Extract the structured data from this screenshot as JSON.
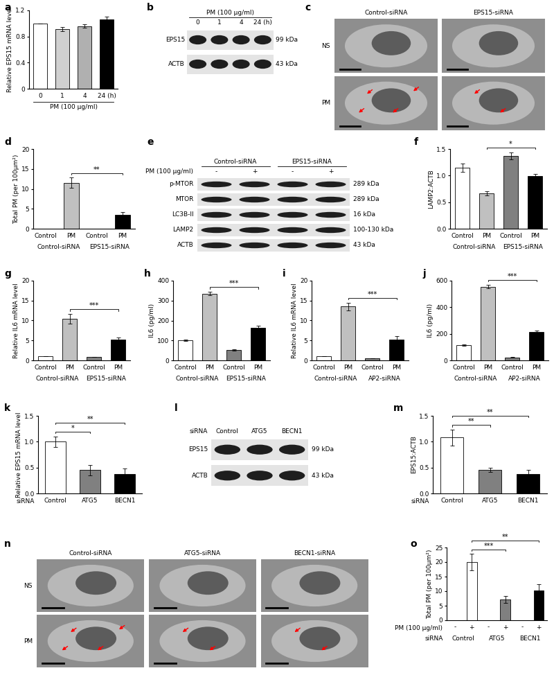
{
  "chart_data": [
    {
      "panel": "a",
      "type": "bar",
      "ylabel": "Relative EPS15 mRNA level",
      "categories": [
        "0",
        "1",
        "4",
        "24 (h)"
      ],
      "xlabel": "PM (100 µg/ml)",
      "values": [
        1.0,
        0.91,
        0.96,
        1.06
      ],
      "errors": [
        0.0,
        0.03,
        0.03,
        0.04
      ],
      "colors": [
        "#ffffff",
        "#d0d0d0",
        "#b0b0b0",
        "#000000"
      ],
      "ylim": [
        0,
        1.2
      ],
      "yticks": [
        0,
        0.4,
        0.8,
        1.2
      ]
    },
    {
      "panel": "d",
      "type": "bar",
      "ylabel": "Total PM (per 100µm²)",
      "categories": [
        "Control",
        "PM",
        "Control",
        "PM"
      ],
      "groups": [
        "Control-siRNA",
        "Control-siRNA",
        "EPS15-siRNA",
        "EPS15-siRNA"
      ],
      "values": [
        0,
        11.5,
        0,
        3.4
      ],
      "errors": [
        0,
        1.3,
        0,
        0.7
      ],
      "colors": [
        "#ffffff",
        "#c0c0c0",
        "#808080",
        "#000000"
      ],
      "comparisons": [
        {
          "between": [
            1,
            3
          ],
          "label": "**"
        }
      ],
      "ylim": [
        0,
        20
      ],
      "yticks": [
        0,
        5,
        10,
        15,
        20
      ]
    },
    {
      "panel": "f",
      "type": "bar",
      "ylabel": "LAMP2:ACTB",
      "categories": [
        "Control",
        "PM",
        "Control",
        "PM"
      ],
      "groups": [
        "Control-siRNA",
        "Control-siRNA",
        "EPS15-siRNA",
        "EPS15-siRNA"
      ],
      "values": [
        1.15,
        0.66,
        1.37,
        0.99
      ],
      "errors": [
        0.08,
        0.04,
        0.07,
        0.04
      ],
      "colors": [
        "#ffffff",
        "#c0c0c0",
        "#808080",
        "#000000"
      ],
      "comparisons": [
        {
          "between": [
            1,
            3
          ],
          "label": "*"
        }
      ],
      "ylim": [
        0,
        1.5
      ],
      "yticks": [
        {
          "value": 0,
          "label": "0.0"
        },
        0.5,
        1.0,
        1.5
      ]
    },
    {
      "panel": "g",
      "type": "bar",
      "ylabel": "Relative IL6 mRNA level",
      "categories": [
        "Control",
        "PM",
        "Control",
        "PM"
      ],
      "groups": [
        "Control-siRNA",
        "Control-siRNA",
        "EPS15-siRNA",
        "EPS15-siRNA"
      ],
      "values": [
        1.0,
        10.4,
        0.9,
        5.2
      ],
      "errors": [
        0.0,
        1.2,
        0.0,
        0.5
      ],
      "colors": [
        "#ffffff",
        "#c0c0c0",
        "#808080",
        "#000000"
      ],
      "comparisons": [
        {
          "between": [
            1,
            3
          ],
          "label": "***"
        }
      ],
      "ylim": [
        0,
        20
      ],
      "yticks": [
        0,
        5,
        10,
        15,
        20
      ]
    },
    {
      "panel": "h",
      "type": "bar",
      "ylabel": "IL6 (pg/ml)",
      "categories": [
        "Control",
        "PM",
        "Control",
        "PM"
      ],
      "groups": [
        "Control-siRNA",
        "Control-siRNA",
        "EPS15-siRNA",
        "EPS15-siRNA"
      ],
      "values": [
        100,
        335,
        52,
        165
      ],
      "errors": [
        4,
        8,
        4,
        10
      ],
      "colors": [
        "#ffffff",
        "#c0c0c0",
        "#808080",
        "#000000"
      ],
      "comparisons": [
        {
          "between": [
            1,
            3
          ],
          "label": "***"
        }
      ],
      "ylim": [
        0,
        400
      ],
      "yticks": [
        0,
        100,
        200,
        300,
        400
      ]
    },
    {
      "panel": "i",
      "type": "bar",
      "ylabel": "Relative IL6 mRNA level",
      "categories": [
        "Control",
        "PM",
        "Control",
        "PM"
      ],
      "groups": [
        "Control-siRNA",
        "Control-siRNA",
        "AP2-siRNA",
        "AP2-siRNA"
      ],
      "values": [
        1.0,
        13.5,
        0.5,
        5.3
      ],
      "errors": [
        0.0,
        1.0,
        0.0,
        0.8
      ],
      "colors": [
        "#ffffff",
        "#c0c0c0",
        "#808080",
        "#000000"
      ],
      "comparisons": [
        {
          "between": [
            1,
            3
          ],
          "label": "***"
        }
      ],
      "ylim": [
        0,
        20
      ],
      "yticks": [
        0,
        5,
        10,
        15,
        20
      ]
    },
    {
      "panel": "j",
      "type": "bar",
      "ylabel": "IL6 (pg/ml)",
      "categories": [
        "Control",
        "PM",
        "Control",
        "PM"
      ],
      "groups": [
        "Control-siRNA",
        "Control-siRNA",
        "AP2-siRNA",
        "AP2-siRNA"
      ],
      "values": [
        115,
        555,
        22,
        215
      ],
      "errors": [
        5,
        15,
        3,
        10
      ],
      "colors": [
        "#ffffff",
        "#c0c0c0",
        "#808080",
        "#000000"
      ],
      "comparisons": [
        {
          "between": [
            1,
            3
          ],
          "label": "***"
        }
      ],
      "ylim": [
        0,
        600
      ],
      "yticks": [
        0,
        200,
        400,
        600
      ]
    },
    {
      "panel": "k",
      "type": "bar",
      "ylabel": "Relative EPS15 mRNA level",
      "categories": [
        "Control",
        "ATG5",
        "BECN1"
      ],
      "row_labels": [
        "siRNA"
      ],
      "values": [
        1.0,
        0.45,
        0.38
      ],
      "errors": [
        0.1,
        0.1,
        0.1
      ],
      "colors": [
        "#ffffff",
        "#808080",
        "#000000"
      ],
      "comparisons": [
        {
          "between": [
            0,
            1
          ],
          "label": "*"
        },
        {
          "between": [
            0,
            2
          ],
          "label": "**"
        }
      ],
      "ylim": [
        0,
        1.5
      ],
      "yticks": [
        {
          "value": 0,
          "label": "0.0"
        },
        0.5,
        1.0,
        1.5
      ]
    },
    {
      "panel": "m",
      "type": "bar",
      "ylabel": "EPS15:ACTB",
      "categories": [
        "Control",
        "ATG5",
        "BECN1"
      ],
      "row_labels": [
        "siRNA"
      ],
      "values": [
        1.08,
        0.45,
        0.38
      ],
      "errors": [
        0.15,
        0.04,
        0.08
      ],
      "colors": [
        "#ffffff",
        "#808080",
        "#000000"
      ],
      "comparisons": [
        {
          "between": [
            0,
            1
          ],
          "label": "**"
        },
        {
          "between": [
            0,
            2
          ],
          "label": "**"
        }
      ],
      "ylim": [
        0,
        1.5
      ],
      "yticks": [
        {
          "value": 0,
          "label": "0.0"
        },
        0.5,
        1.0,
        1.5
      ]
    },
    {
      "panel": "o",
      "type": "bar",
      "ylabel": "Total PM (per 100µm²)",
      "categories": [
        "-",
        "+",
        "-",
        "+",
        "-",
        "+"
      ],
      "groups": [
        "Control",
        "Control",
        "ATG5",
        "ATG5",
        "BECN1",
        "BECN1"
      ],
      "row_labels": [
        "PM (100 µg/ml)",
        "siRNA"
      ],
      "values": [
        0,
        20,
        0,
        7.2,
        0,
        10.3
      ],
      "errors": [
        0,
        2.8,
        0,
        1.2,
        0,
        2.0
      ],
      "colors": [
        "#ffffff",
        "#ffffff",
        "#ffffff",
        "#808080",
        "#ffffff",
        "#000000"
      ],
      "comparisons": [
        {
          "between": [
            1,
            3
          ],
          "label": "***"
        },
        {
          "between": [
            1,
            5
          ],
          "label": "**"
        }
      ],
      "ylim": [
        0,
        25
      ],
      "yticks": [
        0,
        5,
        10,
        15,
        20,
        25
      ]
    }
  ],
  "blots": [
    {
      "panel": "b",
      "header": "PM (100 µg/ml)",
      "lane_labels": [
        "0",
        "1",
        "4",
        "24 (h)"
      ],
      "bands": [
        {
          "name": "EPS15",
          "size": "99 kDa"
        },
        {
          "name": "ACTB",
          "size": "43 kDa"
        }
      ]
    },
    {
      "panel": "e",
      "groups": [
        "Control-siRNA",
        "Control-siRNA",
        "EPS15-siRNA",
        "EPS15-siRNA"
      ],
      "row_label": "PM (100 µg/ml)",
      "lane_labels": [
        "-",
        "+",
        "-",
        "+"
      ],
      "bands": [
        {
          "name": "p-MTOR",
          "size": "289 kDa"
        },
        {
          "name": "MTOR",
          "size": "289 kDa"
        },
        {
          "name": "LC3B-II",
          "size": "16 kDa"
        },
        {
          "name": "LAMP2",
          "size": "100-130 kDa"
        },
        {
          "name": "ACTB",
          "size": "43 kDa"
        }
      ]
    },
    {
      "panel": "l",
      "row_label": "siRNA",
      "lane_labels": [
        "Control",
        "ATG5",
        "BECN1"
      ],
      "bands": [
        {
          "name": "EPS15",
          "size": "99 kDa"
        },
        {
          "name": "ACTB",
          "size": "43 kDa"
        }
      ]
    }
  ],
  "micrographs": [
    {
      "panel": "c",
      "columns": [
        "Control-siRNA",
        "EPS15-siRNA"
      ],
      "rows": [
        "NS",
        "PM"
      ]
    },
    {
      "panel": "n",
      "columns": [
        "Control-siRNA",
        "ATG5-siRNA",
        "BECN1-siRNA"
      ],
      "rows": [
        "NS",
        "PM"
      ]
    }
  ]
}
